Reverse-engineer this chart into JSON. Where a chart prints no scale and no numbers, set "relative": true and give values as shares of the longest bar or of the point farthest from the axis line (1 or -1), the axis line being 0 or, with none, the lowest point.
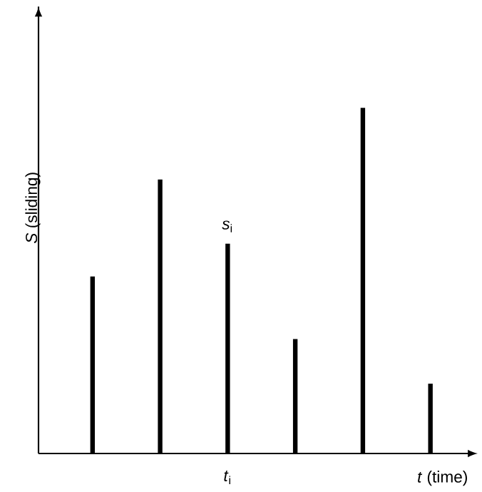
{
  "chart_data": {
    "type": "bar",
    "relative": true,
    "xlabel": "*t* (time)",
    "ylabel": "*S* (sliding)",
    "categories": [
      null,
      null,
      null,
      null,
      null,
      null
    ],
    "values": [
      0.512,
      0.793,
      0.607,
      0.331,
      1,
      0.202
    ],
    "color": "#000000",
    "annotations": [
      "*s*$_{i}$",
      "*t*$_{i}$"
    ]
  }
}
